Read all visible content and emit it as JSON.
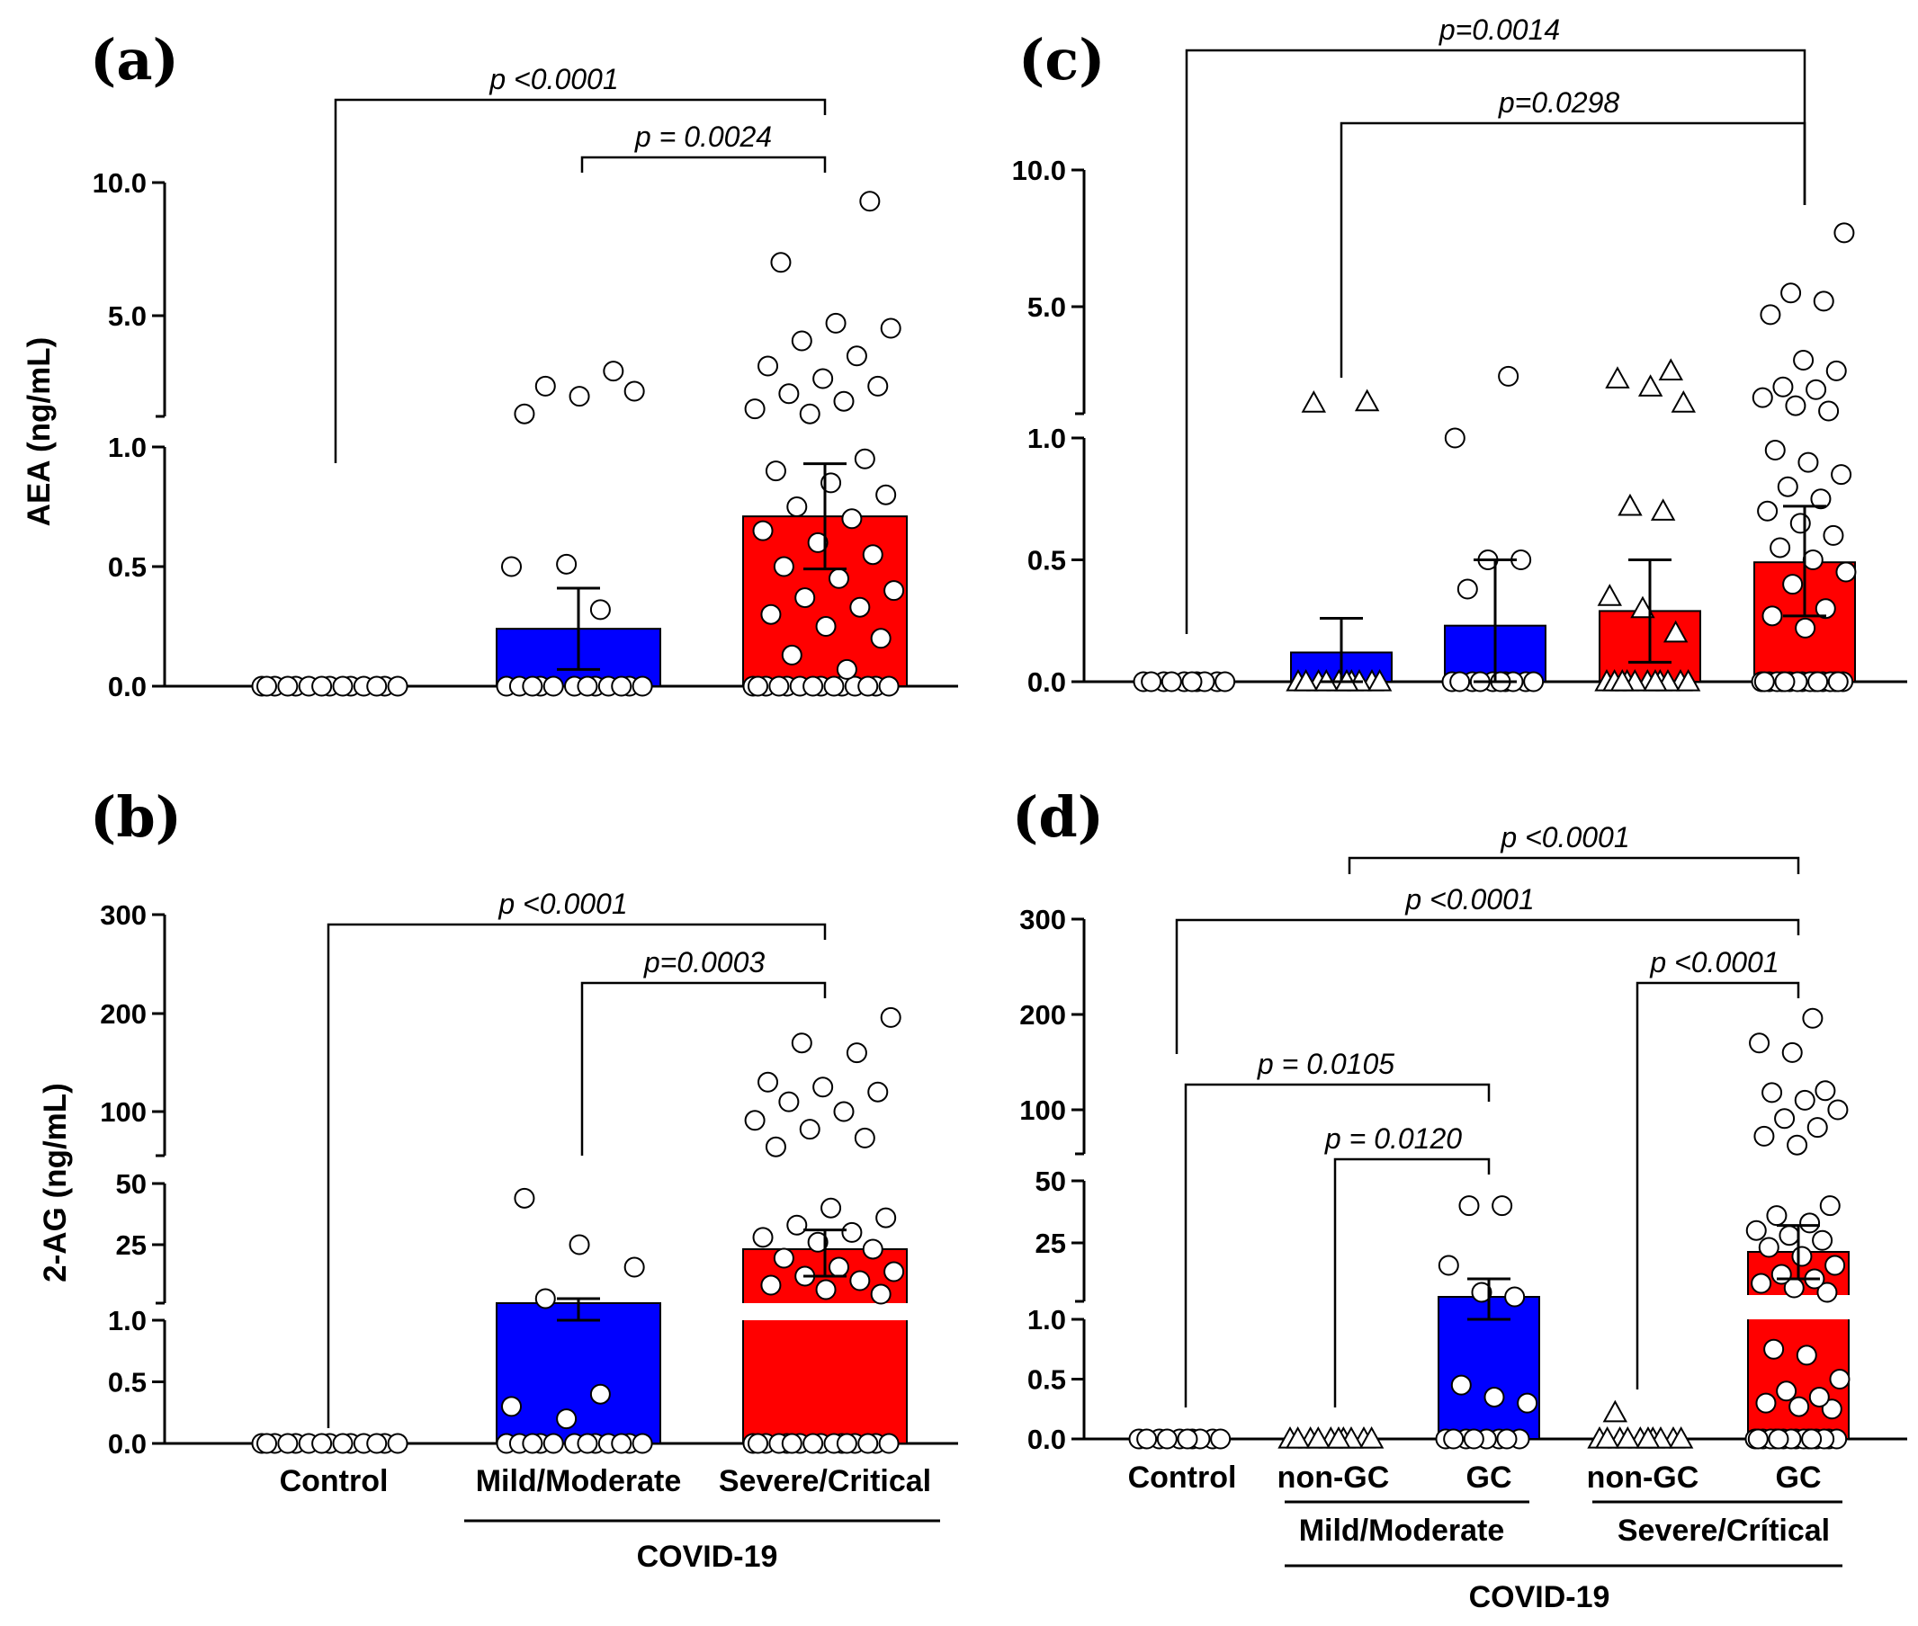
{
  "colors": {
    "mild": "#0000ff",
    "severe": "#ff0000",
    "control": "#ffffff",
    "point": "#ffffff"
  },
  "chart_data": [
    {
      "panel": "(a)",
      "type": "bar",
      "ylabel": "AEA (ng/mL)",
      "ticks": [
        "0.0",
        "0.5",
        "1.0",
        "5.0",
        "10.0"
      ],
      "categories": [
        "Control",
        "Mild/Moderate",
        "Severe/Critical"
      ],
      "group_label": "COVID-19",
      "means": [
        0.0,
        0.24,
        0.71
      ],
      "sem_upper": [
        0.0,
        0.41,
        0.93
      ],
      "sem_lower": [
        0.0,
        0.07,
        0.49
      ],
      "comparisons": [
        {
          "label": "p <0.0001",
          "from": "Control",
          "to": "Severe/Critical"
        },
        {
          "label": "p = 0.0024",
          "from": "Mild/Moderate",
          "to": "Severe/Critical"
        }
      ]
    },
    {
      "panel": "(b)",
      "type": "bar",
      "ylabel": "2-AG (ng/mL)",
      "ticks": [
        "0.0",
        "0.5",
        "1.0",
        "25",
        "50",
        "100",
        "200",
        "300"
      ],
      "categories": [
        "Control",
        "Mild/Moderate",
        "Severe/Critical"
      ],
      "group_label": "COVID-19",
      "means": [
        0.0,
        12,
        24
      ],
      "sem_upper": [
        0.0,
        13,
        31
      ],
      "sem_lower": [
        0.0,
        1.0,
        18
      ],
      "comparisons": [
        {
          "label": "p <0.0001",
          "from": "Control",
          "to": "Severe/Critical"
        },
        {
          "label": "p=0.0003",
          "from": "Mild/Moderate",
          "to": "Severe/Critical"
        }
      ]
    },
    {
      "panel": "(c)",
      "type": "bar",
      "ylabel": "",
      "ticks": [
        "0.0",
        "0.5",
        "1.0",
        "5.0",
        "10.0"
      ],
      "categories": [
        "Control",
        "Mild/Moderate non-GC",
        "Mild/Moderate GC",
        "Severe/Critical non-GC",
        "Severe/Critical GC"
      ],
      "means": [
        0.0,
        0.12,
        0.23,
        0.29,
        0.49
      ],
      "sem_upper": [
        0.0,
        0.26,
        0.5,
        0.5,
        0.72
      ],
      "sem_lower": [
        0.0,
        0.0,
        0.0,
        0.08,
        0.27
      ],
      "comparisons": [
        {
          "label": "p=0.0014",
          "from": "Control",
          "to": "Severe/Critical GC"
        },
        {
          "label": "p=0.0298",
          "from": "Mild/Moderate non-GC",
          "to": "Severe/Critical GC"
        }
      ]
    },
    {
      "panel": "(d)",
      "type": "bar",
      "ylabel": "",
      "ticks": [
        "0.0",
        "0.5",
        "1.0",
        "25",
        "50",
        "100",
        "200",
        "300"
      ],
      "categories": [
        "Control",
        "non-GC",
        "GC",
        "non-GC",
        "GC"
      ],
      "subgroup_labels": [
        "Mild/Moderate",
        "Severe/Crítical"
      ],
      "group_label": "COVID-19",
      "means": [
        0.0,
        0.0,
        13,
        0.0,
        23
      ],
      "sem_upper": [
        0.0,
        0.0,
        17,
        0.0,
        32
      ],
      "sem_lower": [
        0.0,
        0.0,
        1.0,
        0.0,
        17
      ],
      "comparisons": [
        {
          "label": "p <0.0001",
          "from": "Mild/Moderate non-GC",
          "to": "Severe/Critical GC"
        },
        {
          "label": "p <0.0001",
          "from": "Control",
          "to": "Severe/Critical GC"
        },
        {
          "label": "p <0.0001",
          "from": "Severe/Critical non-GC",
          "to": "Severe/Critical GC"
        },
        {
          "label": "p = 0.0105",
          "from": "Control",
          "to": "Mild/Moderate GC"
        },
        {
          "label": "p = 0.0120",
          "from": "Mild/Moderate non-GC",
          "to": "Mild/Moderate GC"
        }
      ]
    }
  ]
}
